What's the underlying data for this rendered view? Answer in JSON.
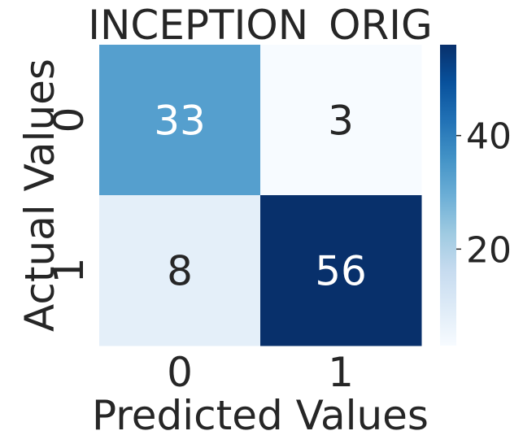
{
  "chart_data": {
    "type": "heatmap",
    "title": "INCEPTION_ORIG",
    "xlabel": "Predicted Values",
    "ylabel": "Actual Values",
    "x_categories": [
      "0",
      "1"
    ],
    "y_categories": [
      "0",
      "1"
    ],
    "values": [
      [
        33,
        3
      ],
      [
        8,
        56
      ]
    ],
    "colormap": "Blues",
    "color_range": [
      3,
      56
    ],
    "colorbar_ticks": [
      20,
      40
    ],
    "colorbar_tick_labels": [
      "20",
      "40"
    ]
  }
}
